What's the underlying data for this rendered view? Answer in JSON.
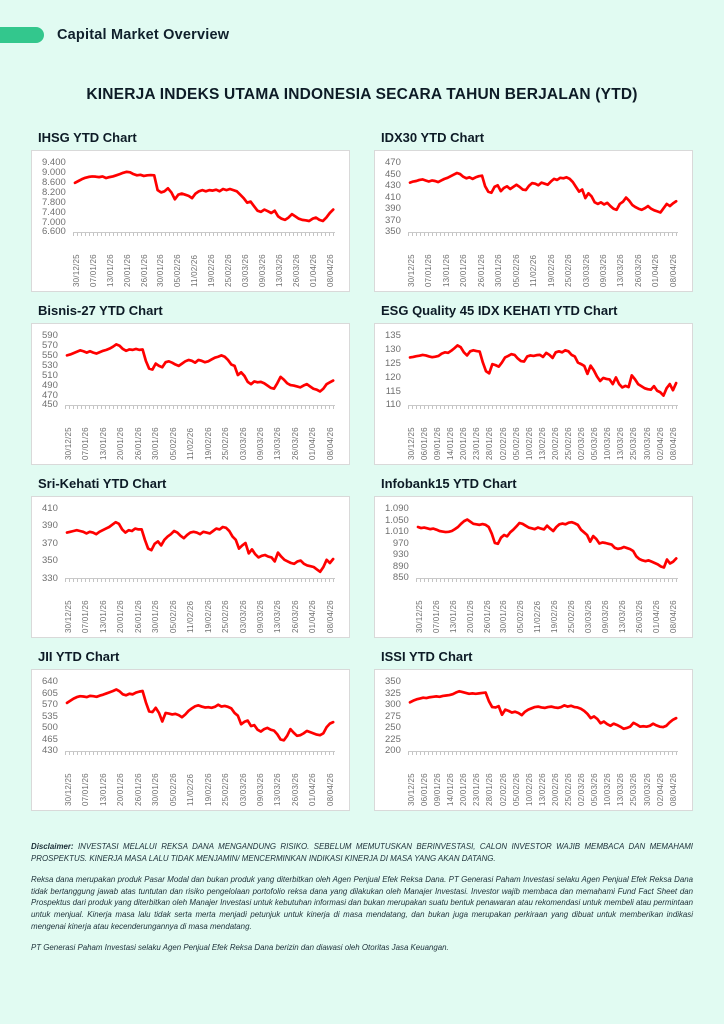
{
  "page": {
    "header_label": "Capital Market Overview",
    "main_title": "KINERJA INDEKS UTAMA INDONESIA SECARA TAHUN BERJALAN (YTD)"
  },
  "colors": {
    "background": "#e1fbf2",
    "accent_pill": "#33c78d",
    "line": "#ff0000",
    "panel_border": "#d9d9d9",
    "axis_text": "#6f6f6f"
  },
  "chart_data": [
    {
      "type": "line",
      "title": "IHSG YTD Chart",
      "ylim": [
        6600,
        9400
      ],
      "yticks": [
        "9.400",
        "9.000",
        "8.600",
        "8.200",
        "7.800",
        "7.400",
        "7.000",
        "6.600"
      ],
      "x_labels": [
        "30/12/25",
        "07/01/26",
        "13/01/26",
        "20/01/26",
        "26/01/26",
        "30/01/26",
        "05/02/26",
        "11/02/26",
        "19/02/26",
        "25/02/26",
        "03/03/26",
        "09/03/26",
        "13/03/26",
        "26/03/26",
        "01/04/26",
        "08/04/26"
      ],
      "legend": false,
      "grid": false,
      "series": [
        {
          "name": "IHSG",
          "color": "#ff0000",
          "values": [
            8620,
            8700,
            8780,
            8840,
            8880,
            8900,
            8890,
            8870,
            8900,
            8830,
            8870,
            8900,
            8950,
            9000,
            9060,
            9100,
            9080,
            9000,
            8950,
            8970,
            8920,
            8950,
            8960,
            8950,
            8300,
            8200,
            8250,
            8380,
            8200,
            7900,
            8100,
            8150,
            8100,
            8050,
            7950,
            8150,
            8250,
            8300,
            8250,
            8300,
            8280,
            8320,
            8250,
            8350,
            8300,
            8350,
            8300,
            8250,
            8100,
            7950,
            7750,
            7800,
            7600,
            7400,
            7350,
            7450,
            7380,
            7300,
            7400,
            7150,
            7050,
            7000,
            7100,
            7250,
            7150,
            7050,
            7000,
            6980,
            6950,
            7050,
            7100,
            7000,
            6950,
            7100,
            7300,
            7450
          ]
        }
      ]
    },
    {
      "type": "line",
      "title": "IDX30 YTD Chart",
      "ylim": [
        350,
        470
      ],
      "yticks": [
        "470",
        "450",
        "430",
        "410",
        "390",
        "370",
        "350"
      ],
      "x_labels": [
        "30/12/25",
        "07/01/26",
        "13/01/26",
        "20/01/26",
        "26/01/26",
        "30/01/26",
        "05/02/26",
        "11/02/26",
        "19/02/26",
        "25/02/26",
        "03/03/26",
        "09/03/26",
        "13/03/26",
        "26/03/26",
        "01/04/26",
        "08/04/26"
      ],
      "legend": false,
      "grid": false,
      "series": [
        {
          "name": "IDX30",
          "color": "#ff0000",
          "values": [
            437,
            439,
            440,
            442,
            443,
            441,
            439,
            441,
            440,
            438,
            441,
            444,
            446,
            449,
            452,
            455,
            453,
            448,
            445,
            447,
            444,
            447,
            449,
            450,
            430,
            420,
            418,
            429,
            432,
            421,
            427,
            430,
            425,
            429,
            433,
            429,
            424,
            423,
            431,
            436,
            435,
            432,
            437,
            435,
            433,
            439,
            444,
            442,
            446,
            445,
            447,
            444,
            438,
            429,
            420,
            424,
            408,
            417,
            411,
            400,
            397,
            400,
            396,
            399,
            393,
            388,
            386,
            397,
            401,
            409,
            403,
            395,
            391,
            388,
            386,
            389,
            393,
            388,
            385,
            383,
            381,
            389,
            397,
            393,
            398,
            402
          ]
        }
      ]
    },
    {
      "type": "line",
      "title": "Bisnis-27 YTD Chart",
      "ylim": [
        450,
        590
      ],
      "yticks": [
        "590",
        "570",
        "550",
        "530",
        "510",
        "490",
        "470",
        "450"
      ],
      "x_labels": [
        "30/12/25",
        "07/01/26",
        "13/01/26",
        "20/01/26",
        "26/01/26",
        "30/01/26",
        "05/02/26",
        "11/02/26",
        "19/02/26",
        "25/02/26",
        "03/03/26",
        "09/03/26",
        "13/03/26",
        "26/03/26",
        "01/04/26",
        "08/04/26"
      ],
      "legend": false,
      "grid": false,
      "series": [
        {
          "name": "Bisnis-27",
          "color": "#ff0000",
          "values": [
            552,
            554,
            557,
            560,
            563,
            561,
            558,
            561,
            558,
            556,
            559,
            562,
            564,
            567,
            571,
            576,
            573,
            566,
            562,
            565,
            564,
            566,
            564,
            565,
            540,
            523,
            521,
            534,
            529,
            526,
            537,
            539,
            536,
            532,
            529,
            534,
            539,
            542,
            540,
            536,
            542,
            540,
            537,
            539,
            543,
            547,
            549,
            552,
            549,
            542,
            532,
            529,
            509,
            515,
            507,
            494,
            489,
            495,
            493,
            494,
            491,
            486,
            481,
            479,
            491,
            505,
            499,
            491,
            487,
            486,
            484,
            482,
            486,
            489,
            484,
            479,
            477,
            473,
            479,
            489,
            493,
            497
          ]
        }
      ]
    },
    {
      "type": "line",
      "title": "ESG Quality 45 IDX KEHATI YTD Chart",
      "ylim": [
        110,
        135
      ],
      "yticks": [
        "135",
        "130",
        "125",
        "120",
        "115",
        "110"
      ],
      "x_labels": [
        "30/12/25",
        "06/01/26",
        "09/01/26",
        "14/01/26",
        "20/01/26",
        "23/01/26",
        "28/01/26",
        "02/02/26",
        "05/02/26",
        "10/02/26",
        "13/02/26",
        "20/02/26",
        "25/02/26",
        "02/03/26",
        "05/03/26",
        "10/03/26",
        "13/03/26",
        "25/03/26",
        "30/03/26",
        "02/04/26",
        "08/04/26"
      ],
      "legend": false,
      "grid": false,
      "series": [
        {
          "name": "ESG Quality 45 IDX KEHATI",
          "color": "#ff0000",
          "values": [
            127.4,
            127.6,
            127.9,
            128.1,
            128.4,
            128.2,
            127.8,
            127.5,
            127.7,
            128.0,
            128.9,
            129.4,
            129.2,
            130.0,
            131.0,
            132.1,
            131.4,
            129.4,
            128.2,
            129.8,
            130.2,
            129.9,
            129.7,
            125.4,
            122.0,
            121.2,
            124.8,
            124.4,
            123.8,
            125.4,
            127.4,
            128.0,
            128.7,
            128.4,
            127.0,
            126.0,
            125.8,
            127.8,
            128.2,
            128.0,
            128.3,
            128.4,
            127.6,
            129.2,
            128.4,
            127.2,
            129.4,
            129.8,
            129.4,
            130.2,
            129.8,
            128.4,
            127.8,
            125.4,
            124.8,
            124.1,
            121.0,
            124.2,
            122.4,
            120.0,
            118.2,
            119.4,
            119.0,
            118.8,
            117.0,
            119.6,
            117.0,
            115.7,
            116.3,
            115.8,
            120.4,
            118.9,
            117.0,
            116.2,
            115.4,
            115.0,
            114.8,
            116.2,
            114.4,
            113.8,
            112.5,
            115.4,
            117.0,
            114.6,
            117.4
          ]
        }
      ]
    },
    {
      "type": "line",
      "title": "Sri-Kehati YTD Chart",
      "ylim": [
        330,
        410
      ],
      "yticks": [
        "410",
        "390",
        "370",
        "350",
        "330"
      ],
      "x_labels": [
        "30/12/25",
        "07/01/26",
        "13/01/26",
        "20/01/26",
        "26/01/26",
        "30/01/26",
        "05/02/26",
        "11/02/26",
        "19/02/26",
        "25/02/26",
        "03/03/26",
        "09/03/26",
        "13/03/26",
        "26/03/26",
        "01/04/26",
        "08/04/26"
      ],
      "legend": false,
      "grid": false,
      "series": [
        {
          "name": "Sri-Kehati",
          "color": "#ff0000",
          "values": [
            383,
            384,
            385,
            386,
            385,
            384,
            382,
            384,
            383,
            381,
            384,
            386,
            388,
            390,
            393,
            396,
            394,
            387,
            383,
            386,
            385,
            388,
            387,
            387,
            374,
            363,
            361,
            369,
            372,
            367,
            374,
            378,
            381,
            385,
            383,
            379,
            376,
            380,
            383,
            384,
            383,
            381,
            384,
            383,
            382,
            385,
            388,
            387,
            390,
            389,
            385,
            378,
            374,
            363,
            367,
            370,
            357,
            362,
            356,
            352,
            354,
            355,
            353,
            352,
            347,
            358,
            353,
            349,
            347,
            345,
            344,
            347,
            348,
            344,
            342,
            341,
            340,
            337,
            334,
            340,
            349,
            345,
            350
          ]
        }
      ]
    },
    {
      "type": "line",
      "title": "Infobank15 YTD Chart",
      "ylim": [
        850,
        1090
      ],
      "yticks": [
        "1.090",
        "1.050",
        "1.010",
        "970",
        "930",
        "890",
        "850"
      ],
      "x_labels": [
        "30/12/25",
        "07/01/26",
        "13/01/26",
        "20/01/26",
        "26/01/26",
        "30/01/26",
        "05/02/26",
        "11/02/26",
        "19/02/26",
        "25/02/26",
        "03/03/26",
        "09/03/26",
        "13/03/26",
        "26/03/26",
        "01/04/26",
        "08/04/26"
      ],
      "legend": false,
      "grid": false,
      "series": [
        {
          "name": "Infobank15",
          "color": "#ff0000",
          "values": [
            1030,
            1026,
            1028,
            1025,
            1022,
            1024,
            1020,
            1015,
            1013,
            1011,
            1012,
            1015,
            1022,
            1030,
            1042,
            1052,
            1058,
            1050,
            1042,
            1040,
            1038,
            1041,
            1038,
            1030,
            1005,
            970,
            967,
            990,
            1000,
            995,
            1010,
            1020,
            1032,
            1045,
            1042,
            1035,
            1028,
            1025,
            1022,
            1028,
            1024,
            1021,
            1035,
            1024,
            1015,
            1030,
            1040,
            1043,
            1040,
            1046,
            1048,
            1044,
            1038,
            1020,
            1010,
            1000,
            975,
            996,
            985,
            968,
            972,
            970,
            967,
            964,
            952,
            948,
            950,
            955,
            951,
            947,
            940,
            920,
            910,
            905,
            902,
            905,
            900,
            895,
            890,
            882,
            878,
            908,
            893,
            900,
            912
          ]
        }
      ]
    },
    {
      "type": "line",
      "title": "JII YTD Chart",
      "ylim": [
        430,
        640
      ],
      "yticks": [
        "640",
        "605",
        "570",
        "535",
        "500",
        "465",
        "430"
      ],
      "x_labels": [
        "30/12/25",
        "07/01/26",
        "13/01/26",
        "20/01/26",
        "26/01/26",
        "30/01/26",
        "05/02/26",
        "11/02/26",
        "19/02/26",
        "25/02/26",
        "03/03/26",
        "09/03/26",
        "13/03/26",
        "26/03/26",
        "01/04/26",
        "08/04/26"
      ],
      "legend": false,
      "grid": false,
      "series": [
        {
          "name": "JII",
          "color": "#ff0000",
          "values": [
            578,
            585,
            592,
            597,
            600,
            599,
            597,
            601,
            600,
            598,
            602,
            605,
            609,
            613,
            617,
            622,
            616,
            606,
            603,
            608,
            606,
            612,
            615,
            617,
            580,
            550,
            548,
            562,
            545,
            517,
            545,
            543,
            540,
            542,
            538,
            531,
            540,
            552,
            560,
            567,
            570,
            566,
            563,
            564,
            562,
            565,
            572,
            566,
            568,
            565,
            560,
            545,
            536,
            508,
            516,
            520,
            502,
            505,
            490,
            484,
            492,
            496,
            490,
            487,
            475,
            458,
            455,
            470,
            492,
            480,
            470,
            472,
            478,
            486,
            482,
            478,
            474,
            472,
            478,
            498,
            510,
            515
          ]
        }
      ]
    },
    {
      "type": "line",
      "title": "ISSI YTD Chart",
      "ylim": [
        200,
        350
      ],
      "yticks": [
        "350",
        "325",
        "300",
        "275",
        "250",
        "225",
        "200"
      ],
      "x_labels": [
        "30/12/25",
        "06/01/26",
        "09/01/26",
        "14/01/26",
        "20/01/26",
        "23/01/26",
        "28/01/26",
        "02/02/26",
        "05/02/26",
        "10/02/26",
        "13/02/26",
        "20/02/26",
        "25/02/26",
        "02/03/26",
        "05/03/26",
        "10/03/26",
        "13/03/26",
        "25/03/26",
        "30/03/26",
        "02/04/26",
        "08/04/26"
      ],
      "legend": false,
      "grid": false,
      "series": [
        {
          "name": "ISSI",
          "color": "#ff0000",
          "values": [
            307,
            311,
            314,
            316,
            318,
            317,
            319,
            320,
            321,
            320,
            322,
            323,
            324,
            326,
            330,
            333,
            331,
            329,
            327,
            328,
            327,
            328,
            329,
            330,
            310,
            296,
            295,
            298,
            278,
            290,
            287,
            283,
            285,
            282,
            277,
            285,
            290,
            293,
            296,
            297,
            295,
            294,
            296,
            297,
            295,
            294,
            296,
            300,
            297,
            299,
            296,
            295,
            292,
            287,
            280,
            270,
            274,
            268,
            258,
            262,
            256,
            252,
            257,
            254,
            250,
            245,
            247,
            250,
            259,
            255,
            250,
            251,
            250,
            252,
            257,
            253,
            250,
            249,
            252,
            260,
            266,
            270
          ]
        }
      ]
    }
  ],
  "disclaimer": {
    "label": "Disclaimer:",
    "p1": "INVESTASI MELALUI REKSA DANA MENGANDUNG RISIKO. SEBELUM MEMUTUSKAN BERINVESTASI, CALON INVESTOR WAJIB MEMBACA DAN MEMAHAMI PROSPEKTUS. KINERJA MASA LALU TIDAK MENJAMIN/ MENCERMINKAN INDIKASI KINERJA DI MASA YANG AKAN DATANG.",
    "p2": "Reksa dana merupakan produk Pasar Modal dan bukan produk yang diterbitkan oleh Agen Penjual Efek Reksa Dana. PT Generasi Paham Investasi selaku Agen Penjual Efek Reksa Dana tidak bertanggung jawab atas tuntutan dan risiko pengelolaan portofolio reksa dana yang dilakukan oleh Manajer Investasi. Investor wajib membaca dan memahami Fund Fact Sheet dan Prospektus dari produk yang diterbitkan oleh Manajer Investasi untuk kebutuhan informasi dan bukan merupakan suatu bentuk penawaran atau rekomendasi untuk membeli atau permintaan untuk menjual. Kinerja masa lalu tidak serta merta menjadi petunjuk untuk kinerja di masa mendatang, dan bukan juga merupakan perkiraan yang dibuat untuk memberikan indikasi mengenai kinerja atau kecenderungannya di masa mendatang.",
    "p3": "PT Generasi Paham Investasi selaku Agen Penjual Efek Reksa Dana berizin dan diawasi oleh Otoritas Jasa Keuangan."
  }
}
